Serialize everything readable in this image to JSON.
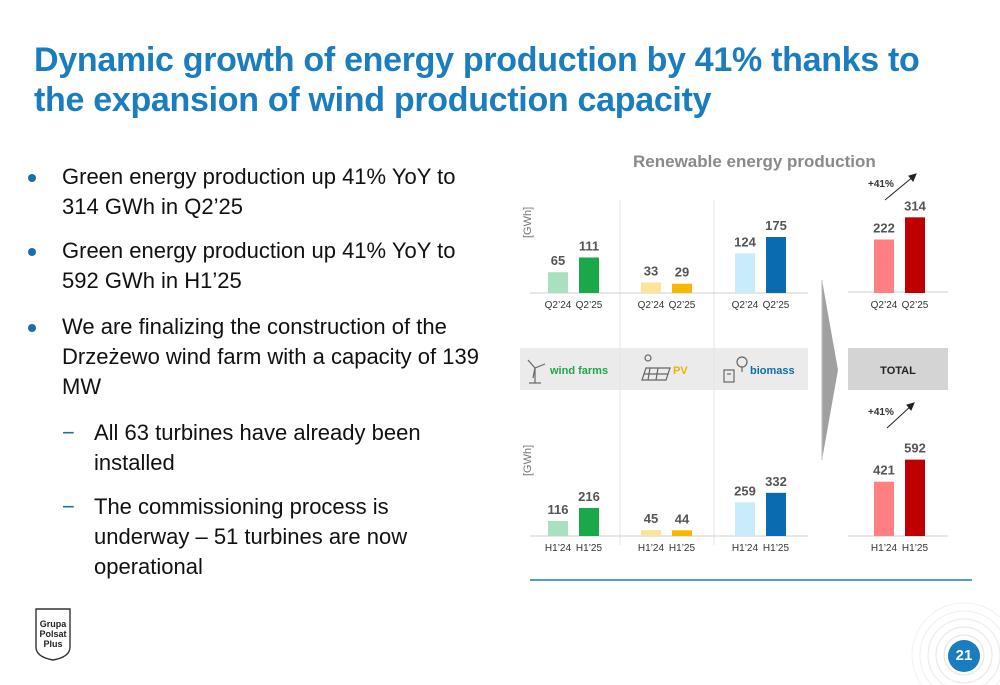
{
  "title": "Dynamic growth of energy production by 41% thanks to the expansion of wind production capacity",
  "bullets": [
    "Green energy production up 41% YoY to 314 GWh in Q2’25",
    "Green energy production up 41% YoY to 592 GWh in H1’25",
    "We are finalizing the construction of the Drzeżewo wind farm with a capacity of 139 MW"
  ],
  "sub_bullets": [
    "All 63 turbines have already been installed",
    "The commissioning process is underway – 51 turbines are now operational"
  ],
  "dash": "−",
  "chart_title": "Renewable energy production",
  "unit_label": "[GWh]",
  "categories": {
    "wind": "wind farms",
    "pv": "PV",
    "biomass": "biomass",
    "total": "TOTAL"
  },
  "growth_label": "+41%",
  "colors": {
    "wind_prev": "#a8e0c0",
    "wind_cur": "#1aa84a",
    "pv_prev": "#fde49a",
    "pv_cur": "#f6b800",
    "bio_prev": "#c9ecfa",
    "bio_cur": "#0a6bb0",
    "total_prev": "#ff8080",
    "total_cur": "#c00000"
  },
  "logo_text": [
    "Grupa",
    "Polsat",
    "Plus"
  ],
  "page_number": "21",
  "chart_data": [
    {
      "type": "bar",
      "name": "quarterly",
      "categories": [
        "Q2’24",
        "Q2’25"
      ],
      "series": [
        {
          "name": "wind farms",
          "values": [
            65,
            111
          ]
        },
        {
          "name": "PV",
          "values": [
            33,
            29
          ]
        },
        {
          "name": "biomass",
          "values": [
            124,
            175
          ]
        },
        {
          "name": "TOTAL",
          "values": [
            222,
            314
          ]
        }
      ],
      "ylabel": "[GWh]"
    },
    {
      "type": "bar",
      "name": "half-year",
      "categories": [
        "H1’24",
        "H1’25"
      ],
      "series": [
        {
          "name": "wind farms",
          "values": [
            116,
            216
          ]
        },
        {
          "name": "PV",
          "values": [
            45,
            44
          ]
        },
        {
          "name": "biomass",
          "values": [
            259,
            332
          ]
        },
        {
          "name": "TOTAL",
          "values": [
            421,
            592
          ]
        }
      ],
      "ylabel": "[GWh]"
    }
  ]
}
